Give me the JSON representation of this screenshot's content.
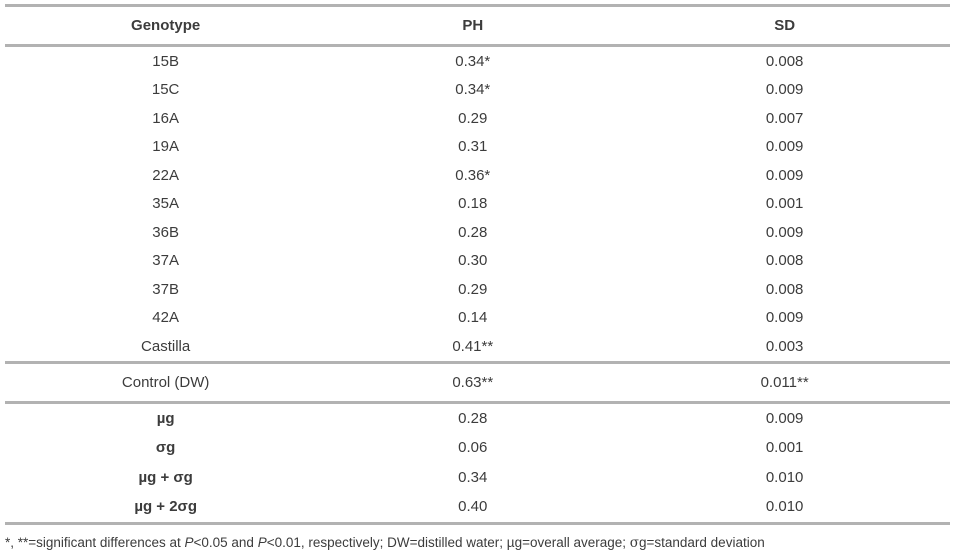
{
  "table": {
    "columns": [
      "Genotype",
      "PH",
      "SD"
    ],
    "sections": [
      {
        "name": "genotypes",
        "bold_labels": false,
        "rows": [
          [
            "15B",
            "0.34*",
            "0.008"
          ],
          [
            "15C",
            "0.34*",
            "0.009"
          ],
          [
            "16A",
            "0.29",
            "0.007"
          ],
          [
            "19A",
            "0.31",
            "0.009"
          ],
          [
            "22A",
            "0.36*",
            "0.009"
          ],
          [
            "35A",
            "0.18",
            "0.001"
          ],
          [
            "36B",
            "0.28",
            "0.009"
          ],
          [
            "37A",
            "0.30",
            "0.008"
          ],
          [
            "37B",
            "0.29",
            "0.008"
          ],
          [
            "42A",
            "0.14",
            "0.009"
          ],
          [
            "Castilla",
            "0.41**",
            "0.003"
          ]
        ]
      },
      {
        "name": "control",
        "bold_labels": false,
        "rows": [
          [
            "Control (DW)",
            "0.63**",
            "0.011**"
          ]
        ]
      },
      {
        "name": "statistics",
        "bold_labels": true,
        "rows": [
          [
            "µg",
            "0.28",
            "0.009"
          ],
          [
            "σg",
            "0.06",
            "0.001"
          ],
          [
            "µg + σg",
            "0.34",
            "0.010"
          ],
          [
            "µg + 2σg",
            "0.40",
            "0.010"
          ]
        ]
      }
    ]
  },
  "footnote": {
    "parts": [
      {
        "text": "*, **=significant differences at ",
        "italic": false,
        "serif": false
      },
      {
        "text": "P",
        "italic": true,
        "serif": false
      },
      {
        "text": "<0.05 and ",
        "italic": false,
        "serif": false
      },
      {
        "text": "P",
        "italic": true,
        "serif": false
      },
      {
        "text": "<0.01, respectively; DW=distilled water; µg=overall average; ",
        "italic": false,
        "serif": false
      },
      {
        "text": "σ",
        "italic": false,
        "serif": true
      },
      {
        "text": "g=standard deviation",
        "italic": false,
        "serif": false
      }
    ]
  },
  "colors": {
    "rule_gray": "#b2b2b2",
    "text": "#3c3c3c",
    "background": "#ffffff"
  }
}
